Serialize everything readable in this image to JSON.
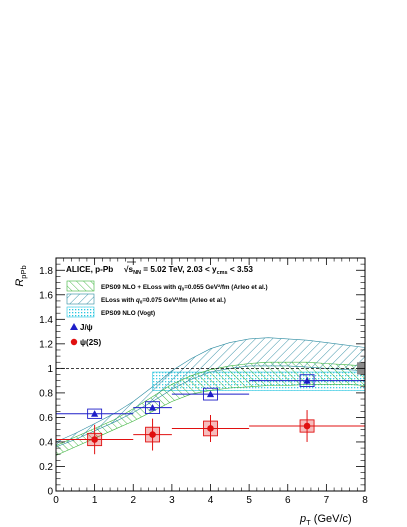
{
  "chart_data": {
    "type": "scatter",
    "header": {
      "collab": "ALICE, p-Pb",
      "sqrt_label": "s",
      "sqrt_sub": "NN",
      "energy": " = 5.02 TeV, 2.03 < ",
      "y_label": "y",
      "y_sub": "cms",
      "y_range": " < 3.53"
    },
    "ylabel": "R",
    "ylabel_sub": "pPb",
    "xlabel": "p",
    "xlabel_sub": "T",
    "xlabel_unit": " (GeV/c)",
    "xlim": [
      0,
      8
    ],
    "ylim": [
      0,
      1.9
    ],
    "x_ticks": [
      "0",
      "1",
      "2",
      "3",
      "4",
      "5",
      "6",
      "7",
      "8"
    ],
    "y_ticks": [
      "0",
      "0.2",
      "0.4",
      "0.6",
      "0.8",
      "1",
      "1.2",
      "1.4",
      "1.6",
      "1.8"
    ],
    "x_tick_values": [
      0,
      1,
      2,
      3,
      4,
      5,
      6,
      7,
      8
    ],
    "y_tick_values": [
      0,
      0.2,
      0.4,
      0.6,
      0.8,
      1,
      1.2,
      1.4,
      1.6,
      1.8
    ],
    "reference_line": 1,
    "global_uncertainty": [
      0.95,
      1.05
    ],
    "legend": {
      "model1_prefix": "EPS09 NLO + ELoss with ",
      "model1_q": "q",
      "model1_qsub": "0",
      "model1_suffix": "=0.055 GeV²/fm (Arleo et al.)",
      "model2_prefix": "ELoss with ",
      "model2_q": "q",
      "model2_qsub": "0",
      "model2_suffix": "=0.075 GeV²/fm (Arleo et al.)",
      "model3": "EPS09 NLO (Vogt)",
      "jpsi": "J/ψ",
      "psi2s": "ψ(2S)"
    },
    "colors": {
      "jpsi": "#1e1ec8",
      "psi2s": "#e01010",
      "model1": "#3cb43c",
      "model2": "#2a8aa0",
      "model3": "#29c6e0"
    },
    "bands": {
      "eps_eloss": {
        "x": [
          0,
          0.5,
          1,
          1.5,
          2,
          2.5,
          3,
          3.5,
          4,
          4.5,
          5,
          5.5,
          6,
          6.5,
          7,
          7.5,
          8
        ],
        "low": [
          0.29,
          0.36,
          0.43,
          0.5,
          0.57,
          0.65,
          0.73,
          0.79,
          0.82,
          0.84,
          0.85,
          0.86,
          0.86,
          0.87,
          0.87,
          0.87,
          0.86
        ],
        "high": [
          0.37,
          0.44,
          0.51,
          0.58,
          0.67,
          0.77,
          0.87,
          0.94,
          0.99,
          1.02,
          1.04,
          1.05,
          1.05,
          1.05,
          1.04,
          1.03,
          1.02
        ]
      },
      "eloss": {
        "x": [
          0,
          0.5,
          1,
          1.5,
          2,
          2.5,
          3,
          3.5,
          4,
          4.5,
          5,
          5.5,
          6,
          6.5,
          7,
          7.5,
          8
        ],
        "low": [
          0.36,
          0.42,
          0.49,
          0.56,
          0.64,
          0.73,
          0.83,
          0.91,
          0.97,
          1.0,
          1.02,
          1.02,
          1.02,
          1.01,
          1.0,
          0.99,
          0.98
        ],
        "high": [
          0.4,
          0.47,
          0.55,
          0.63,
          0.73,
          0.85,
          0.98,
          1.08,
          1.16,
          1.21,
          1.24,
          1.25,
          1.24,
          1.23,
          1.21,
          1.19,
          1.17
        ]
      },
      "eps_vogt": {
        "x": [
          2.5,
          8
        ],
        "low": [
          0.82,
          0.82
        ],
        "high": [
          0.97,
          0.97
        ]
      }
    },
    "series": [
      {
        "name": "J/ψ",
        "points": [
          {
            "x": 1.0,
            "y": 0.63,
            "xlo": 0.0,
            "xhi": 2.0,
            "stat": 0.02,
            "syst": 0.03
          },
          {
            "x": 2.5,
            "y": 0.68,
            "xlo": 2.0,
            "xhi": 3.0,
            "stat": 0.02,
            "syst": 0.04
          },
          {
            "x": 4.0,
            "y": 0.79,
            "xlo": 3.0,
            "xhi": 5.0,
            "stat": 0.02,
            "syst": 0.04
          },
          {
            "x": 6.5,
            "y": 0.9,
            "xlo": 5.0,
            "xhi": 8.0,
            "stat": 0.03,
            "syst": 0.04
          }
        ]
      },
      {
        "name": "ψ(2S)",
        "points": [
          {
            "x": 1.0,
            "y": 0.42,
            "xlo": 0.0,
            "xhi": 2.0,
            "stat": 0.12,
            "syst": 0.05
          },
          {
            "x": 2.5,
            "y": 0.46,
            "xlo": 2.0,
            "xhi": 3.0,
            "stat": 0.13,
            "syst": 0.06
          },
          {
            "x": 4.0,
            "y": 0.51,
            "xlo": 3.0,
            "xhi": 5.0,
            "stat": 0.11,
            "syst": 0.06
          },
          {
            "x": 6.5,
            "y": 0.53,
            "xlo": 5.0,
            "xhi": 8.0,
            "stat": 0.13,
            "syst": 0.05
          }
        ]
      }
    ]
  }
}
